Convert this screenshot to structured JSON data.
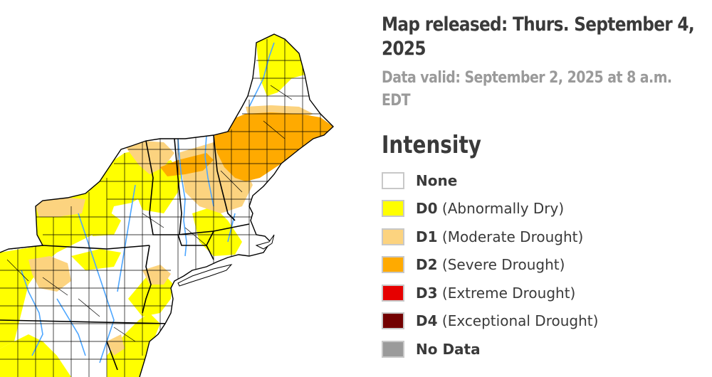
{
  "header": {
    "released": "Map released: Thurs. September 4, 2025",
    "valid": "Data valid: September 2, 2025 at 8 a.m. EDT"
  },
  "legend": {
    "title": "Intensity",
    "items": [
      {
        "code": "None",
        "desc": "",
        "color": "#ffffff"
      },
      {
        "code": "D0",
        "desc": "(Abnormally Dry)",
        "color": "#ffff00"
      },
      {
        "code": "D1",
        "desc": "(Moderate Drought)",
        "color": "#fcd37f"
      },
      {
        "code": "D2",
        "desc": "(Severe Drought)",
        "color": "#ffaa00"
      },
      {
        "code": "D3",
        "desc": "(Extreme Drought)",
        "color": "#e60000"
      },
      {
        "code": "D4",
        "desc": "(Exceptional Drought)",
        "color": "#730000"
      },
      {
        "code": "No Data",
        "desc": "",
        "color": "#9b9b9b"
      }
    ]
  },
  "map": {
    "colors": {
      "none": "#ffffff",
      "d0": "#ffff00",
      "d1": "#fcd37f",
      "d2": "#ffaa00",
      "water": "#4da6ff",
      "border": "#000000"
    }
  }
}
